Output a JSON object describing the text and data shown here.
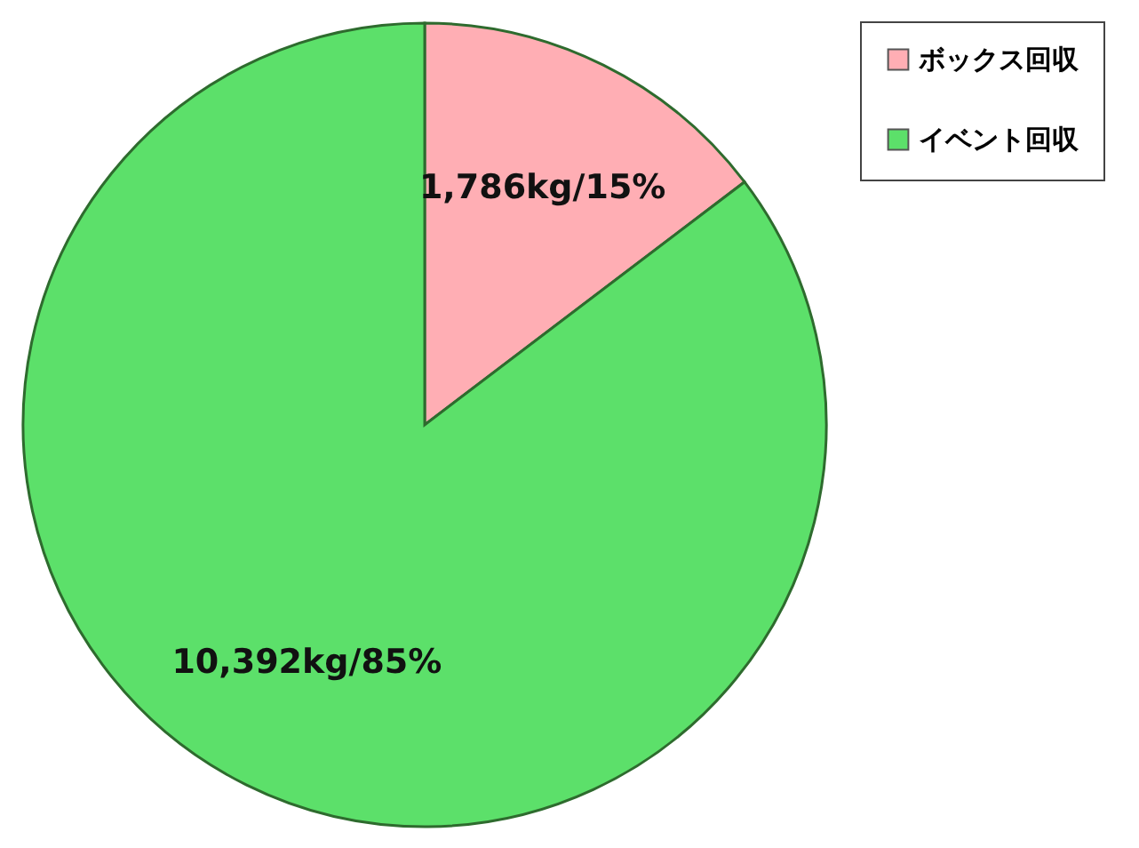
{
  "chart_data": {
    "type": "pie",
    "categories": [
      "ボックス回収",
      "イベント回収"
    ],
    "values": [
      1786,
      10392
    ],
    "colors": [
      "#ffaeb4",
      "#5ce06a"
    ],
    "value_labels": [
      "1,786kg/15%",
      "10,392kg/85%"
    ],
    "legend": "right"
  }
}
